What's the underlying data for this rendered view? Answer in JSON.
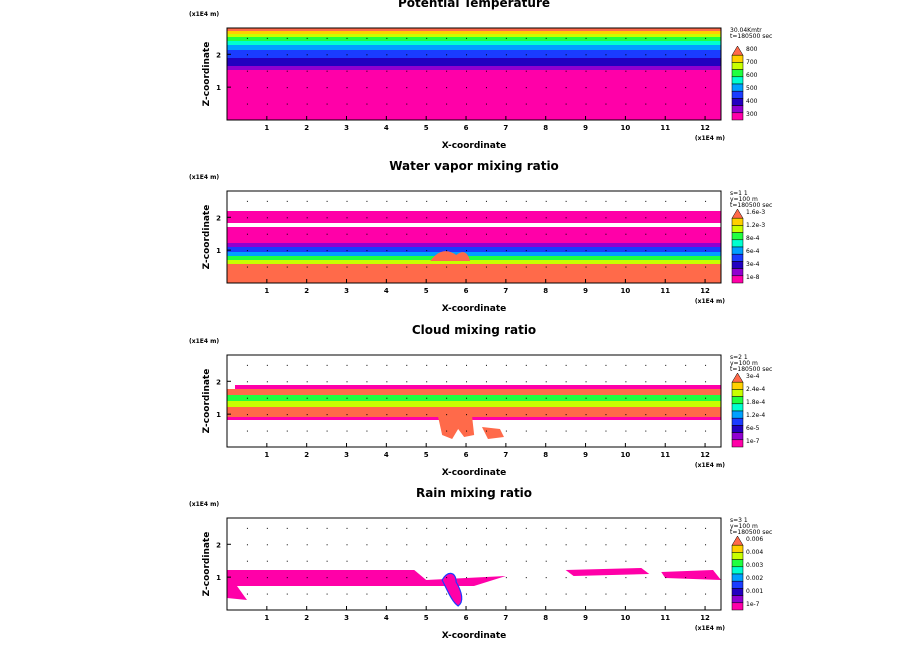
{
  "chart_data": [
    {
      "type": "heatmap",
      "title": "Potential Temperature",
      "xlabel": "X-coordinate",
      "ylabel": "Z-coordinate",
      "x_unit": "(x1E4 m)",
      "z_unit": "(x1E4 m)",
      "x_ticks": [
        "1",
        "2",
        "3",
        "4",
        "5",
        "6",
        "7",
        "8",
        "9",
        "10",
        "11",
        "12"
      ],
      "z_ticks": [
        "1",
        "2"
      ],
      "xlim": [
        0,
        12.4
      ],
      "zlim": [
        0,
        2.8
      ],
      "info": [
        "30.04Kmtr",
        "t=180500 sec"
      ],
      "colorbar_labels": [
        "800",
        "700",
        "600",
        "500",
        "400",
        "300"
      ],
      "colorbar_colors": [
        "#ff6a4a",
        "#ffd000",
        "#c8ff00",
        "#20ff40",
        "#00ffd0",
        "#00a0ff",
        "#1a3cff",
        "#2200c0",
        "#9000d0",
        "#ff00a8"
      ]
    },
    {
      "type": "heatmap",
      "title": "Water vapor mixing ratio",
      "xlabel": "X-coordinate",
      "ylabel": "Z-coordinate",
      "x_unit": "(x1E4 m)",
      "z_unit": "(x1E4 m)",
      "x_ticks": [
        "1",
        "2",
        "3",
        "4",
        "5",
        "6",
        "7",
        "8",
        "9",
        "10",
        "11",
        "12"
      ],
      "z_ticks": [
        "1",
        "2"
      ],
      "xlim": [
        0,
        12.4
      ],
      "zlim": [
        0,
        2.8
      ],
      "info": [
        "s=1 1",
        "y=100 m",
        "t=180500 sec"
      ],
      "colorbar_labels": [
        "1.6e-3",
        "1.2e-3",
        "8e-4",
        "6e-4",
        "3e-4",
        "1e-8"
      ],
      "colorbar_colors": [
        "#ff6a4a",
        "#ffd000",
        "#c8ff00",
        "#20ff40",
        "#00ffd0",
        "#00a0ff",
        "#1a3cff",
        "#2200c0",
        "#9000d0",
        "#ff00a8"
      ]
    },
    {
      "type": "heatmap",
      "title": "Cloud mixing ratio",
      "xlabel": "X-coordinate",
      "ylabel": "Z-coordinate",
      "x_unit": "(x1E4 m)",
      "z_unit": "(x1E4 m)",
      "x_ticks": [
        "1",
        "2",
        "3",
        "4",
        "5",
        "6",
        "7",
        "8",
        "9",
        "10",
        "11",
        "12"
      ],
      "z_ticks": [
        "1",
        "2"
      ],
      "xlim": [
        0,
        12.4
      ],
      "zlim": [
        0,
        2.8
      ],
      "info": [
        "s=2 1",
        "y=100 m",
        "t=180500 sec"
      ],
      "colorbar_labels": [
        "3e-4",
        "2.4e-4",
        "1.8e-4",
        "1.2e-4",
        "6e-5",
        "1e-7"
      ],
      "colorbar_colors": [
        "#ff6a4a",
        "#ffd000",
        "#c8ff00",
        "#20ff40",
        "#00ffd0",
        "#00a0ff",
        "#1a3cff",
        "#2200c0",
        "#9000d0",
        "#ff00a8"
      ]
    },
    {
      "type": "heatmap",
      "title": "Rain mixing ratio",
      "xlabel": "X-coordinate",
      "ylabel": "Z-coordinate",
      "x_unit": "(x1E4 m)",
      "z_unit": "(x1E4 m)",
      "x_ticks": [
        "1",
        "2",
        "3",
        "4",
        "5",
        "6",
        "7",
        "8",
        "9",
        "10",
        "11",
        "12"
      ],
      "z_ticks": [
        "1",
        "2"
      ],
      "xlim": [
        0,
        12.4
      ],
      "zlim": [
        0,
        2.8
      ],
      "info": [
        "s=3 1",
        "y=100 m",
        "t=180500 sec"
      ],
      "colorbar_labels": [
        "0.006",
        "0.004",
        "0.003",
        "0.002",
        "0.001",
        "1e-7"
      ],
      "colorbar_colors": [
        "#ff6a4a",
        "#ffd000",
        "#c8ff00",
        "#20ff40",
        "#00ffd0",
        "#00a0ff",
        "#1a3cff",
        "#2200c0",
        "#9000d0",
        "#ff00a8"
      ]
    }
  ]
}
